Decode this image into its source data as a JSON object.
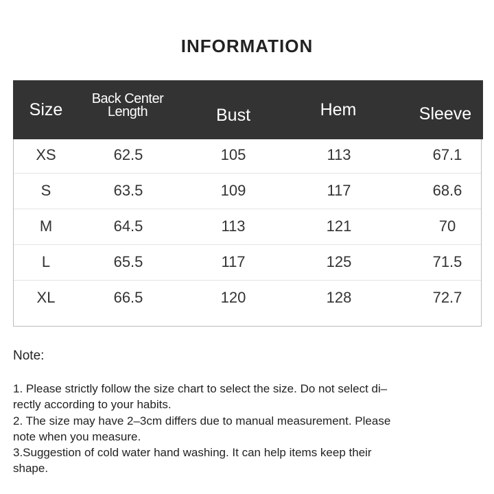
{
  "title": "INFORMATION",
  "table": {
    "headers": [
      "Size",
      [
        "Back Center",
        "Length"
      ],
      "Bust",
      "Hem",
      "Sleeve"
    ],
    "rows": [
      [
        "XS",
        "62.5",
        "105",
        "113",
        "67.1"
      ],
      [
        "S",
        "63.5",
        "109",
        "117",
        "68.6"
      ],
      [
        "M",
        "64.5",
        "113",
        "121",
        "70"
      ],
      [
        "L",
        "65.5",
        "117",
        "125",
        "71.5"
      ],
      [
        "XL",
        "66.5",
        "120",
        "128",
        "72.7"
      ]
    ],
    "header_bg": "#333333"
  },
  "note": {
    "heading": "Note:",
    "lines": [
      "1. Please strictly follow the size chart  to select the size. Do not select di–",
      "rectly according to your habits.",
      "2. The size may have 2–3cm differs due to manual measurement. Please",
      "note when you measure.",
      "3.Suggestion of cold water hand washing. It can help items keep their",
      "shape."
    ]
  }
}
